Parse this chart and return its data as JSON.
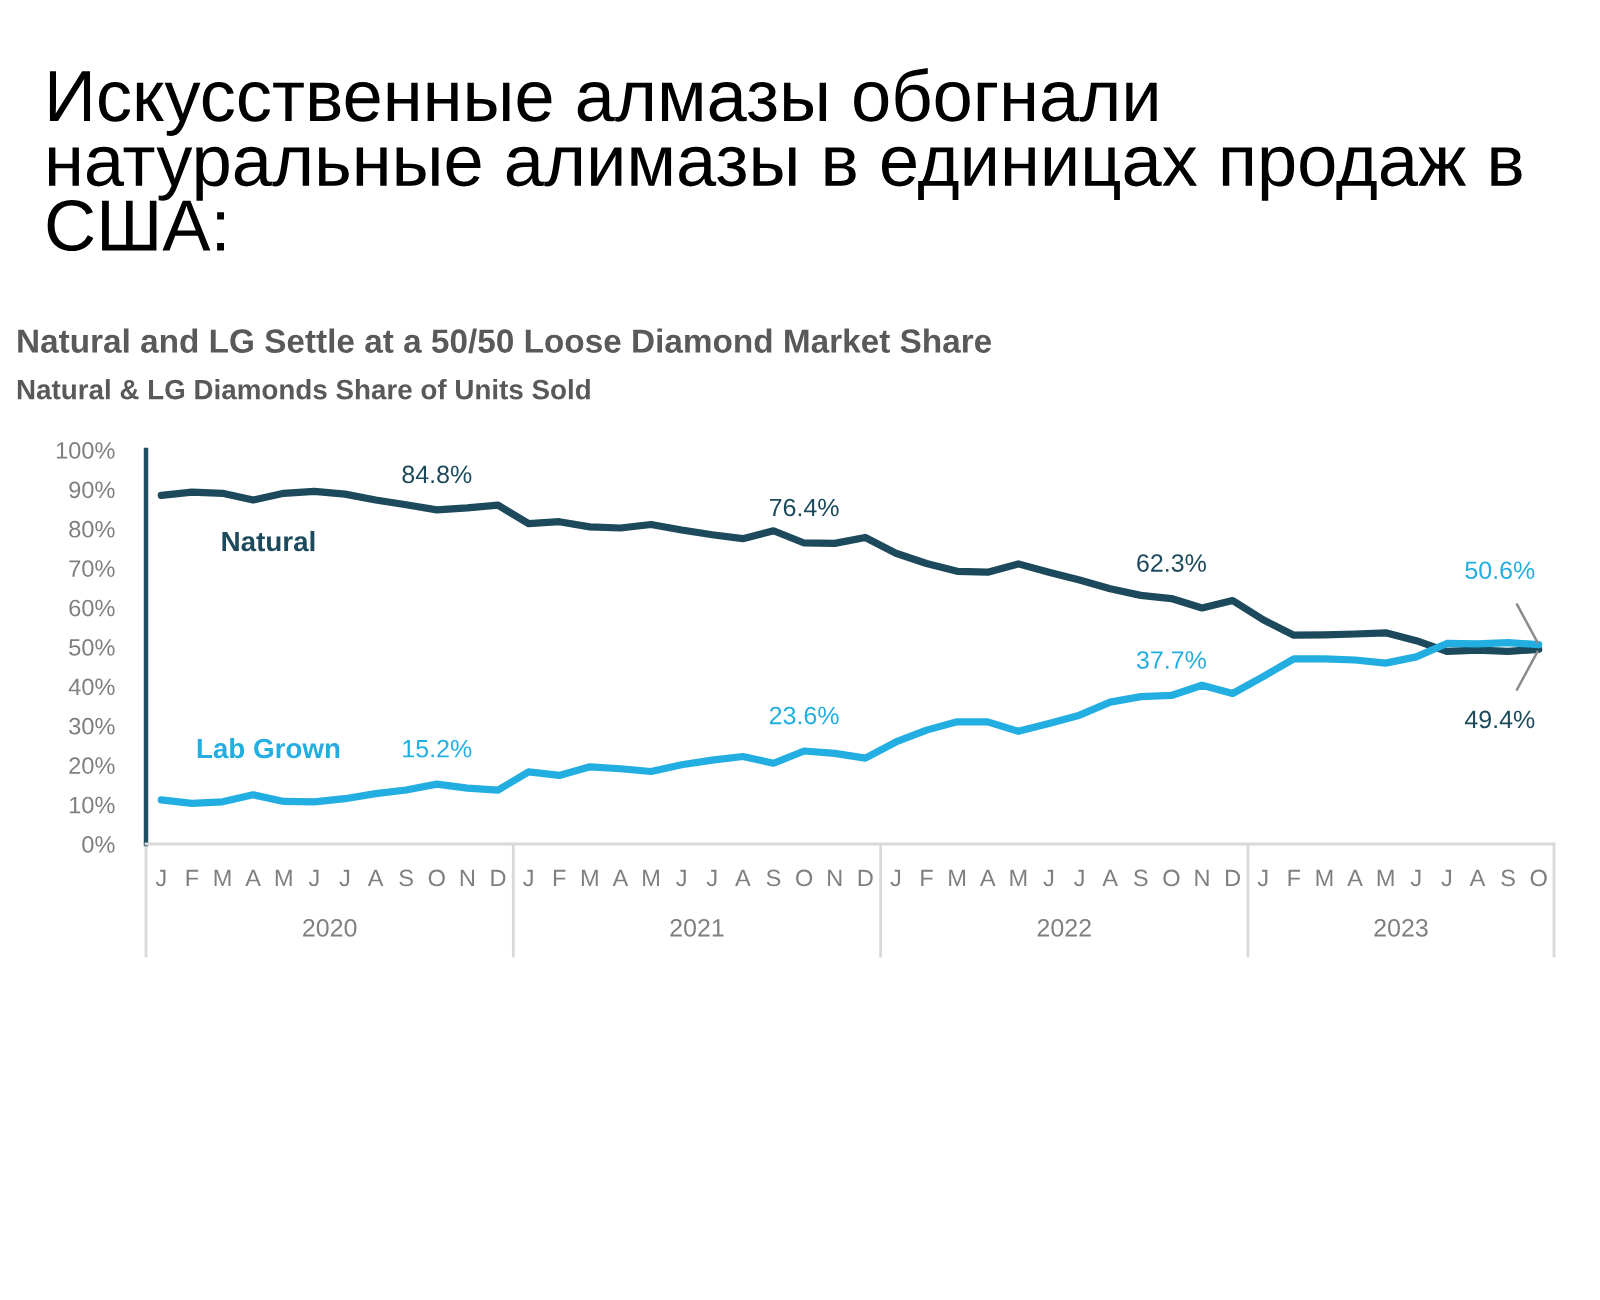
{
  "chart_data": {
    "type": "line",
    "title": "Искусственные алмазы обогнали натуральные алимазы в единицах продаж в США:",
    "subtitle": "Natural and LG Settle at a 50/50 Loose Diamond Market Share\nNatural & LG Diamonds Share of Units Sold",
    "annotations": [
      "2020",
      "2021",
      "2022",
      "2023"
    ],
    "categories": [
      "J",
      "F",
      "M",
      "A",
      "M",
      "J",
      "J",
      "A",
      "S",
      "O",
      "N",
      "D",
      "J",
      "F",
      "M",
      "A",
      "M",
      "J",
      "J",
      "A",
      "S",
      "O",
      "N",
      "D",
      "J",
      "F",
      "M",
      "A",
      "M",
      "J",
      "J",
      "A",
      "S",
      "O",
      "N",
      "D",
      "J",
      "F",
      "M",
      "A",
      "M",
      "J",
      "J",
      "A",
      "S",
      "O"
    ],
    "series": [
      {
        "name": "Natural",
        "color": "#1c4a5c",
        "values": [
          88.5,
          89.3,
          89.0,
          87.3,
          89.0,
          89.5,
          88.8,
          87.3,
          86.1,
          84.8,
          85.3,
          86.0,
          81.3,
          81.8,
          80.5,
          80.2,
          81.1,
          79.7,
          78.5,
          77.5,
          79.5,
          76.4,
          76.3,
          77.8,
          73.8,
          71.2,
          69.2,
          69.0,
          71.1,
          69.0,
          67.0,
          64.8,
          63.1,
          62.3,
          59.9,
          61.8,
          56.9,
          53.0,
          53.1,
          53.3,
          53.6,
          51.6,
          48.9,
          49.2,
          48.9,
          49.4
        ],
        "value_labels": [
          null,
          null,
          null,
          null,
          null,
          null,
          null,
          null,
          null,
          "84.8%",
          null,
          null,
          null,
          null,
          null,
          null,
          null,
          null,
          null,
          null,
          null,
          "76.4%",
          null,
          null,
          null,
          null,
          null,
          null,
          null,
          null,
          null,
          null,
          null,
          "62.3%",
          null,
          null,
          null,
          null,
          null,
          null,
          null,
          null,
          null,
          null,
          null,
          "49.4%"
        ]
      },
      {
        "name": "Lab Grown",
        "color": "#22aee0",
        "values": [
          11.2,
          10.3,
          10.7,
          12.5,
          10.8,
          10.7,
          11.5,
          12.8,
          13.7,
          15.2,
          14.2,
          13.7,
          18.3,
          17.4,
          19.6,
          19.1,
          18.4,
          20.1,
          21.3,
          22.2,
          20.5,
          23.6,
          23.0,
          21.8,
          25.9,
          28.9,
          31.0,
          31.0,
          28.6,
          30.6,
          32.7,
          36.0,
          37.4,
          37.7,
          40.3,
          38.2,
          42.5,
          47.0,
          47.0,
          46.7,
          45.9,
          47.5,
          50.9,
          50.8,
          51.1,
          50.6
        ],
        "value_labels": [
          null,
          null,
          null,
          null,
          null,
          null,
          null,
          null,
          null,
          "15.2%",
          null,
          null,
          null,
          null,
          null,
          null,
          null,
          null,
          null,
          null,
          null,
          "23.6%",
          null,
          null,
          null,
          null,
          null,
          null,
          null,
          null,
          null,
          null,
          null,
          "37.7%",
          null,
          null,
          null,
          null,
          null,
          null,
          null,
          null,
          null,
          null,
          null,
          "50.6%"
        ]
      }
    ],
    "ylim": [
      0,
      100
    ],
    "yticks": [
      {
        "value": 0,
        "label": "0%"
      },
      {
        "value": 10,
        "label": "10%"
      },
      {
        "value": 20,
        "label": "20%"
      },
      {
        "value": 30,
        "label": "30%"
      },
      {
        "value": 40,
        "label": "40%"
      },
      {
        "value": 50,
        "label": "50%"
      },
      {
        "value": 60,
        "label": "60%"
      },
      {
        "value": 70,
        "label": "70%"
      },
      {
        "value": 80,
        "label": "80%"
      },
      {
        "value": 90,
        "label": "90%"
      },
      {
        "value": 100,
        "label": "100%"
      }
    ]
  }
}
